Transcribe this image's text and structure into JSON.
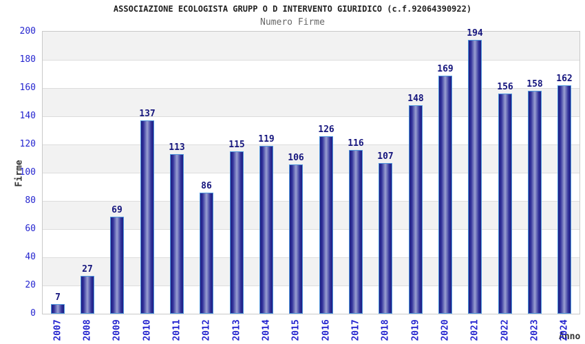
{
  "header": {
    "title": "ASSOCIAZIONE ECOLOGISTA GRUPP O D INTERVENTO GIURIDICO (c.f.92064390922)",
    "subtitle": "Numero Firme"
  },
  "chart_data": {
    "type": "bar",
    "title": "ASSOCIAZIONE ECOLOGISTA GRUPP O D INTERVENTO GIURIDICO (c.f.92064390922)",
    "subtitle": "Numero Firme",
    "xlabel": "Anno",
    "ylabel": "Firme",
    "categories": [
      "2007",
      "2008",
      "2009",
      "2010",
      "2011",
      "2012",
      "2013",
      "2014",
      "2015",
      "2016",
      "2017",
      "2018",
      "2019",
      "2020",
      "2021",
      "2022",
      "2023",
      "2024"
    ],
    "values": [
      7,
      27,
      69,
      137,
      113,
      86,
      115,
      119,
      106,
      126,
      116,
      107,
      148,
      169,
      194,
      156,
      158,
      162
    ],
    "ylim": [
      0,
      200
    ],
    "ytick_step": 20,
    "grid": true,
    "legend": "none",
    "colors": {
      "bar_dark": "#1d1d81",
      "bar_mid": "#30309a",
      "bar_light": "#9aa0d2",
      "bar_border": "#4f97dd",
      "band_gray": "#f2f2f2",
      "band_white": "#ffffff",
      "gridline": "#dcdcdc",
      "tick_blue": "#2424cf",
      "value_navy": "#15157d",
      "title_dark": "#222222",
      "subtitle_gray": "#666666",
      "axis_title": "#333333"
    }
  }
}
